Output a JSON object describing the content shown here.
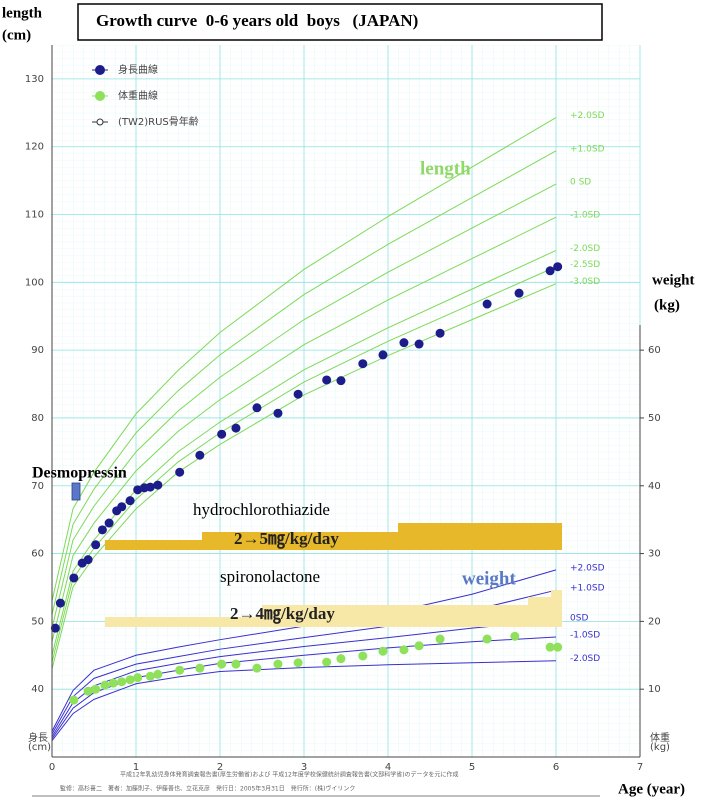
{
  "chart_data": {
    "type": "line",
    "title": "Growth curve  0-6 years old  boys   (JAPAN)",
    "y_label": "length",
    "y_unit": "(cm)",
    "y2_label": "weight",
    "y2_unit": "(kg)",
    "x_label": "Age (year)",
    "y_corner_label": [
      "身長",
      "(cm)"
    ],
    "y2_corner_label": [
      "体重",
      "(kg)"
    ],
    "xlim": [
      0,
      7
    ],
    "xticks": [
      0,
      1,
      2,
      3,
      4,
      5,
      6,
      7
    ],
    "ylim": [
      30,
      135
    ],
    "yticks": [
      40,
      50,
      60,
      70,
      80,
      90,
      100,
      110,
      120,
      130
    ],
    "y2lim": [
      0,
      105
    ],
    "y2ticks": [
      10,
      20,
      30,
      40,
      50,
      60
    ],
    "grid": true,
    "series": [
      {
        "name": "身長曲線",
        "color": "#1c1c8a",
        "marker": "filled",
        "x": [
          0.04,
          0.1,
          0.26,
          0.36,
          0.43,
          0.52,
          0.6,
          0.68,
          0.77,
          0.83,
          0.93,
          1.02,
          1.1,
          1.17,
          1.26,
          1.52,
          1.76,
          2.02,
          2.19,
          2.44,
          2.69,
          2.93,
          3.27,
          3.44,
          3.7,
          3.94,
          4.19,
          4.37,
          4.62,
          5.18,
          5.56,
          5.93,
          6.02
        ],
        "values": [
          49.0,
          52.7,
          56.4,
          58.6,
          59.1,
          61.3,
          63.5,
          64.5,
          66.3,
          66.9,
          67.8,
          69.4,
          69.7,
          69.8,
          70.1,
          72.0,
          74.5,
          77.6,
          78.5,
          81.5,
          80.7,
          83.5,
          85.6,
          85.5,
          88.0,
          89.3,
          91.1,
          90.9,
          92.5,
          96.8,
          98.4,
          101.7,
          102.3
        ]
      },
      {
        "name": "体重曲線",
        "color": "#8fe05a",
        "marker": "filled",
        "axis": "y2",
        "x": [
          0.26,
          0.43,
          0.52,
          0.63,
          0.73,
          0.83,
          0.93,
          1.02,
          1.17,
          1.26,
          1.52,
          1.76,
          2.02,
          2.19,
          2.44,
          2.69,
          2.93,
          3.27,
          3.44,
          3.7,
          3.94,
          4.19,
          4.37,
          4.62,
          5.18,
          5.51,
          5.93,
          6.02
        ],
        "values": [
          8.4,
          9.7,
          10.0,
          10.6,
          10.9,
          11.1,
          11.4,
          11.7,
          11.9,
          12.2,
          12.8,
          13.1,
          13.7,
          13.7,
          13.1,
          13.7,
          13.9,
          14.0,
          14.5,
          14.9,
          15.6,
          15.8,
          16.4,
          17.4,
          17.4,
          17.8,
          16.2,
          16.2
        ]
      },
      {
        "name": "(TW2)RUS骨年齢",
        "color": "#333333",
        "marker": "open",
        "x": [],
        "values": []
      }
    ],
    "reference_curves": [
      {
        "label": "+2.0SD",
        "color": "#7ed957",
        "x": [
          0,
          0.25,
          0.5,
          1,
          1.5,
          2,
          3,
          4,
          5,
          6
        ],
        "values": [
          53,
          66.6,
          72,
          80.6,
          87,
          92.6,
          101.9,
          109.7,
          117,
          124.3
        ]
      },
      {
        "label": "+1.0SD",
        "color": "#7ed957",
        "x": [
          0,
          0.25,
          0.5,
          1,
          1.5,
          2,
          3,
          4,
          5,
          6
        ],
        "values": [
          51,
          64.3,
          69.5,
          77.8,
          84,
          89.3,
          98.2,
          105.6,
          112.5,
          119.4
        ]
      },
      {
        "label": "0 SD",
        "color": "#7ed957",
        "x": [
          0,
          0.25,
          0.5,
          1,
          1.5,
          2,
          3,
          4,
          5,
          6
        ],
        "values": [
          49,
          62,
          67,
          75,
          81,
          86,
          94.5,
          101.5,
          108,
          114.5
        ]
      },
      {
        "label": "-1.0SD",
        "color": "#7ed957",
        "x": [
          0,
          0.25,
          0.5,
          1,
          1.5,
          2,
          3,
          4,
          5,
          6
        ],
        "values": [
          47,
          59.7,
          64.5,
          72.2,
          78,
          82.7,
          90.8,
          97.4,
          103.5,
          109.6
        ]
      },
      {
        "label": "-2.0SD",
        "color": "#7ed957",
        "x": [
          0,
          0.25,
          0.5,
          1,
          1.5,
          2,
          3,
          4,
          5,
          6
        ],
        "values": [
          45,
          57.4,
          62,
          69.4,
          75,
          79.4,
          87.1,
          93.3,
          99,
          104.7
        ]
      },
      {
        "label": "-2.5SD",
        "color": "#7ed957",
        "x": [
          0,
          0.25,
          0.5,
          1,
          1.5,
          2,
          3,
          4,
          5,
          6
        ],
        "values": [
          44,
          56.3,
          60.8,
          68,
          73.5,
          77.8,
          85.3,
          91.3,
          96.8,
          102.3
        ]
      },
      {
        "label": "-3.0SD",
        "color": "#7ed957",
        "x": [
          0,
          0.25,
          0.5,
          1,
          1.5,
          2,
          3,
          4,
          5,
          6
        ],
        "values": [
          43,
          55.1,
          59.5,
          66.6,
          72,
          76.1,
          83.4,
          89.2,
          94.5,
          99.8
        ]
      },
      {
        "label": "+2.0SD",
        "color": "#3a2fd0",
        "axis": "y2",
        "x": [
          0,
          0.25,
          0.5,
          1,
          1.5,
          2,
          3,
          4,
          5,
          6
        ],
        "values": [
          3.8,
          9.8,
          12.8,
          15.0,
          16.2,
          17.3,
          19.3,
          21.2,
          24.0,
          27.6
        ]
      },
      {
        "label": "+1.0SD",
        "color": "#3a2fd0",
        "axis": "y2",
        "x": [
          0,
          0.25,
          0.5,
          1,
          1.5,
          2,
          3,
          4,
          5,
          6
        ],
        "values": [
          3.4,
          8.9,
          11.6,
          13.7,
          14.8,
          15.9,
          17.6,
          19.3,
          21.6,
          24.6
        ]
      },
      {
        "label": "0SD",
        "color": "#3a2fd0",
        "axis": "y2",
        "x": [
          0,
          0.25,
          0.5,
          1,
          1.5,
          2,
          3,
          4,
          5,
          6
        ],
        "values": [
          3.0,
          8.0,
          10.5,
          12.7,
          13.8,
          14.8,
          16.3,
          17.6,
          19.0,
          20.2
        ]
      },
      {
        "label": "-1.0SD",
        "color": "#3a2fd0",
        "axis": "y2",
        "x": [
          0,
          0.25,
          0.5,
          1,
          1.5,
          2,
          3,
          4,
          5,
          6
        ],
        "values": [
          2.7,
          7.2,
          9.5,
          11.7,
          12.8,
          13.8,
          15.0,
          16.1,
          17.0,
          17.7
        ]
      },
      {
        "label": "-2.0SD",
        "color": "#3a2fd0",
        "axis": "y2",
        "x": [
          0,
          0.25,
          0.5,
          1,
          1.5,
          2,
          3,
          4,
          5,
          6
        ],
        "values": [
          2.4,
          6.4,
          8.5,
          10.8,
          11.8,
          12.6,
          13.2,
          13.6,
          13.9,
          14.2
        ]
      }
    ],
    "annotations": [
      "length",
      "weight",
      "Desmopressin",
      "hydrochlorothiazide",
      "2→5㎎/kg/day",
      "spironolactone",
      "2→4㎎/kg/day"
    ],
    "footnotes": [
      "平成12年乳幼児身体発育調査報告書(厚生労働省)および 平成12年度学校保健統計調査報告書(文部科学省)のデータを元に作成",
      "監修：高杉喜二　著者：加藤則子、伊藤善也、立花克彦　発行日：2005年3月31日　発行所：(株)ヴイリンク"
    ]
  }
}
